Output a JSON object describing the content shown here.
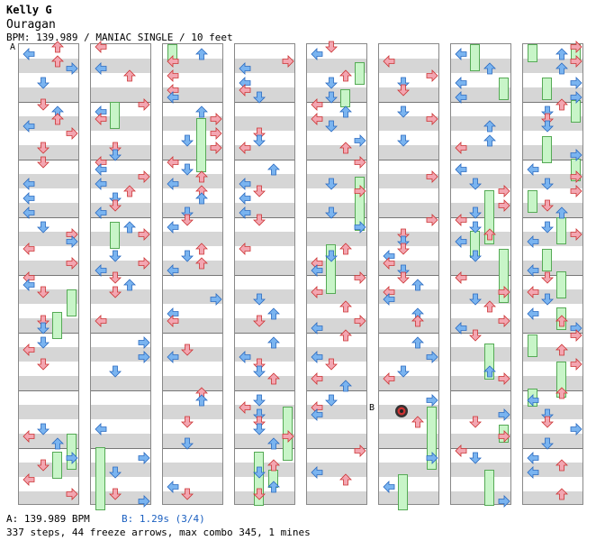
{
  "header": {
    "player": "Kelly G",
    "song": "Ouragan",
    "info": "BPM: 139.989 / MANIAC SINGLE / 10 feet"
  },
  "markers": {
    "a": "A",
    "b": "B"
  },
  "footer": {
    "bpm_a": "A: 139.989 BPM",
    "stop_b": "B: 1.29s (3/4)",
    "stats": "337 steps, 44 freeze arrows, max combo 345, 1 mines"
  },
  "colors": {
    "red": "#f3a6b1",
    "blue": "#7ab4f0",
    "freeze": "#c8f5c8"
  },
  "columns": 8
}
